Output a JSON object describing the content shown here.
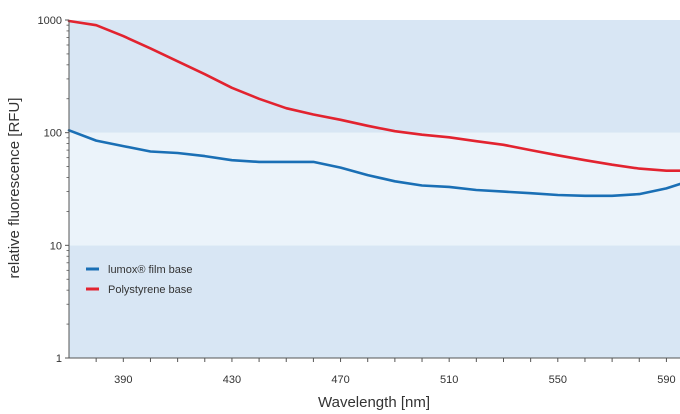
{
  "chart_data": {
    "type": "line",
    "xlabel": "Wavelength [nm]",
    "ylabel": "relative fluorescence [RFU]",
    "xlim": [
      370,
      595
    ],
    "ylim": [
      1,
      1000
    ],
    "y_scale": "log",
    "x_ticks": [
      390,
      430,
      470,
      510,
      550,
      590
    ],
    "x_tick_labels": [
      "390",
      "430",
      "470",
      "510",
      "550",
      "590"
    ],
    "y_ticks": [
      1,
      10,
      100,
      1000
    ],
    "y_tick_labels": [
      "1",
      "10",
      "100",
      "1000"
    ],
    "grid": false,
    "legend_position": "lower-left",
    "series": [
      {
        "name": "lumox® film base",
        "color": "#1a6fb5",
        "x": [
          370,
          380,
          390,
          400,
          410,
          420,
          430,
          440,
          450,
          460,
          470,
          480,
          490,
          500,
          510,
          520,
          530,
          540,
          550,
          560,
          570,
          580,
          590,
          595
        ],
        "y": [
          105,
          85,
          76,
          68,
          66,
          62,
          57,
          55,
          55,
          55,
          49,
          42,
          37,
          34,
          33,
          31,
          30,
          29,
          28,
          27.5,
          27.5,
          28.5,
          32,
          35
        ]
      },
      {
        "name": "Polystyrene base",
        "color": "#e2232f",
        "x": [
          370,
          380,
          390,
          400,
          410,
          420,
          430,
          440,
          450,
          460,
          470,
          480,
          490,
          500,
          510,
          520,
          530,
          540,
          550,
          560,
          570,
          580,
          590,
          595
        ],
        "y": [
          980,
          900,
          720,
          560,
          430,
          330,
          250,
          200,
          165,
          145,
          130,
          115,
          103,
          96,
          91,
          84,
          78,
          70,
          63,
          57,
          52,
          48,
          46,
          46
        ]
      }
    ]
  },
  "colors": {
    "band_dark": "#d8e6f4",
    "band_light": "#ebf3fa",
    "axis": "#555555",
    "text": "#333333"
  }
}
